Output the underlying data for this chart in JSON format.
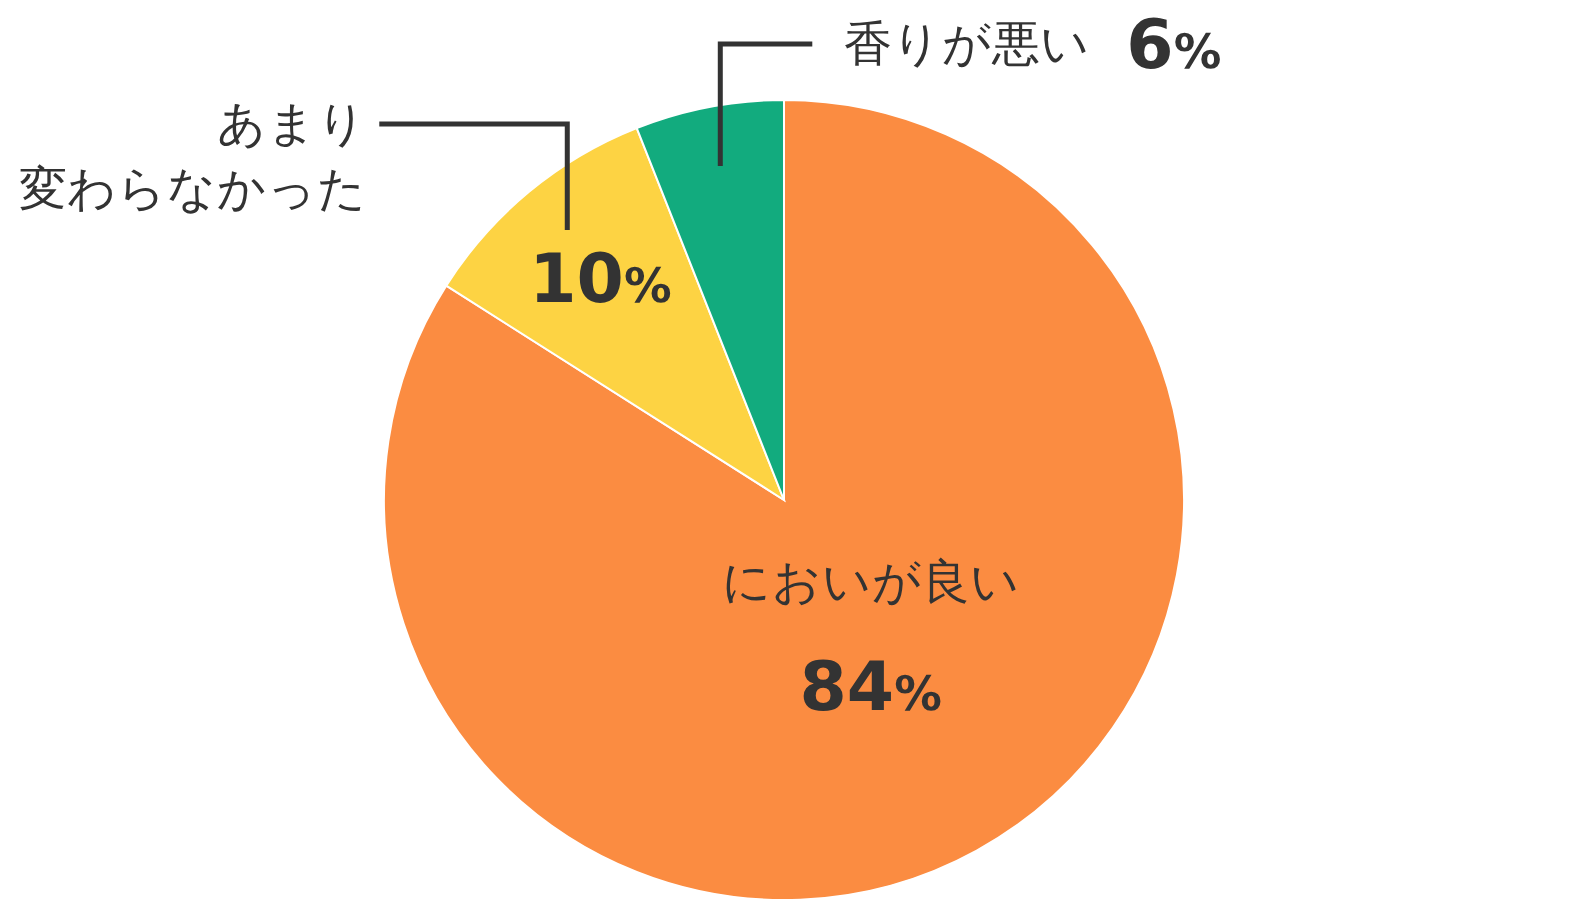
{
  "chart_data": {
    "type": "pie",
    "categories": [
      "においが良い",
      "あまり変わらなかった",
      "香りが悪い"
    ],
    "values": [
      84,
      10,
      6
    ],
    "colors": [
      "#fb8c41",
      "#fdd343",
      "#12ab7e"
    ],
    "value_labels": [
      "84%",
      "10%",
      "6%"
    ]
  }
}
